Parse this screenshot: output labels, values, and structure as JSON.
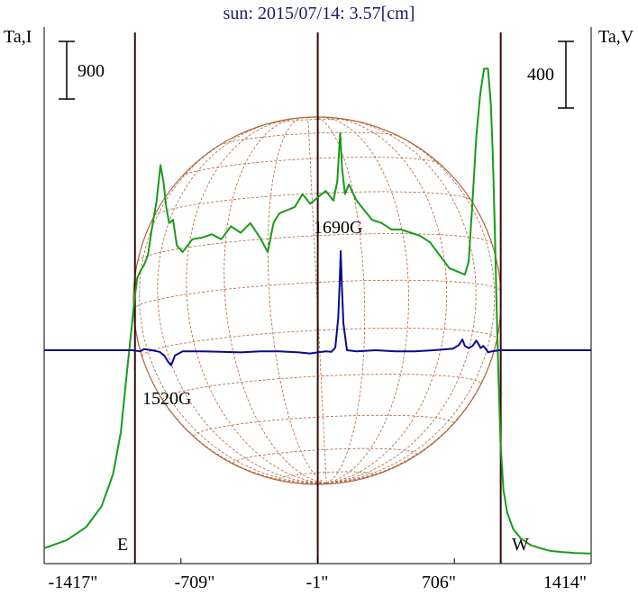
{
  "title": "sun: 2015/07/14: 3.57[cm]",
  "left_axis_label": "Ta,I",
  "right_axis_label": "Ta,V",
  "scale_bars": {
    "left": "900",
    "right": "400"
  },
  "limb_labels": {
    "east": "E",
    "west": "W"
  },
  "colors": {
    "stokes_I": "#1a9a1a",
    "stokes_V": "#0a0a8c",
    "grid": "#b0643a",
    "vlines": "#3a0a0a"
  },
  "chart_data": {
    "type": "line",
    "title": "sun: 2015/07/14: 3.57[cm]",
    "xlabel": "",
    "ylabel_left": "Ta,I",
    "ylabel_right": "Ta,V",
    "x_ticks": [
      "-1417\"",
      "-709\"",
      "-1\"",
      "706\"",
      "1414\""
    ],
    "xlim": [
      -1417,
      1414
    ],
    "vertical_lines_arcsec": [
      -947,
      -1,
      946
    ],
    "annotations": [
      {
        "text": "1690G",
        "x": 118,
        "series": "V"
      },
      {
        "text": "1520G",
        "x": -770,
        "series": "V"
      }
    ],
    "series": [
      {
        "id": "I",
        "units": "scale bar = 900",
        "x": [
          -1417,
          -1300,
          -1200,
          -1120,
          -1060,
          -1020,
          -990,
          -965,
          -950,
          -935,
          -920,
          -900,
          -880,
          -860,
          -835,
          -815,
          -800,
          -785,
          -770,
          -750,
          -730,
          -700,
          -650,
          -600,
          -550,
          -500,
          -450,
          -400,
          -350,
          -300,
          -260,
          -230,
          -200,
          -160,
          -120,
          -80,
          -40,
          0,
          40,
          80,
          100,
          115,
          125,
          140,
          160,
          200,
          240,
          280,
          330,
          380,
          430,
          480,
          530,
          580,
          630,
          680,
          720,
          760,
          780,
          800,
          820,
          840,
          860,
          880,
          895,
          905,
          915,
          925,
          935,
          945,
          960,
          980,
          1010,
          1050,
          1100,
          1150,
          1200,
          1260,
          1330,
          1414
        ],
        "y": [
          20,
          45,
          85,
          150,
          250,
          380,
          560,
          700,
          790,
          860,
          880,
          900,
          930,
          1010,
          1100,
          1210,
          1160,
          1080,
          1030,
          1040,
          960,
          940,
          980,
          985,
          995,
          980,
          1020,
          1000,
          1030,
          985,
          940,
          1030,
          1060,
          1070,
          1080,
          1120,
          1090,
          1110,
          1130,
          1100,
          1160,
          1310,
          1200,
          1120,
          1150,
          1100,
          1070,
          1040,
          1030,
          1010,
          1010,
          1000,
          990,
          970,
          930,
          890,
          880,
          870,
          910,
          1100,
          1300,
          1430,
          1510,
          1510,
          1400,
          1240,
          1020,
          760,
          540,
          350,
          200,
          130,
          80,
          50,
          30,
          20,
          12,
          8,
          5,
          3
        ]
      },
      {
        "id": "V",
        "units": "scale bar = 400",
        "x": [
          -1417,
          -1100,
          -960,
          -920,
          -900,
          -860,
          -820,
          -795,
          -775,
          -760,
          -740,
          -700,
          -600,
          -500,
          -400,
          -300,
          -200,
          -100,
          -40,
          0,
          40,
          70,
          90,
          105,
          112,
          118,
          124,
          132,
          150,
          200,
          300,
          400,
          500,
          600,
          700,
          730,
          748,
          760,
          780,
          800,
          820,
          830,
          842,
          855,
          870,
          880,
          900,
          940,
          1000,
          1100,
          1414
        ],
        "y": [
          0,
          0,
          0,
          -2,
          2,
          0,
          -3,
          -10,
          -22,
          -28,
          -10,
          -2,
          -2,
          -3,
          -4,
          -2,
          -2,
          -4,
          -6,
          -4,
          -2,
          -3,
          5,
          60,
          120,
          185,
          120,
          50,
          0,
          -2,
          0,
          -2,
          -2,
          0,
          3,
          10,
          20,
          8,
          4,
          8,
          18,
          12,
          4,
          8,
          2,
          -4,
          -2,
          0,
          0,
          0,
          0
        ]
      }
    ]
  }
}
